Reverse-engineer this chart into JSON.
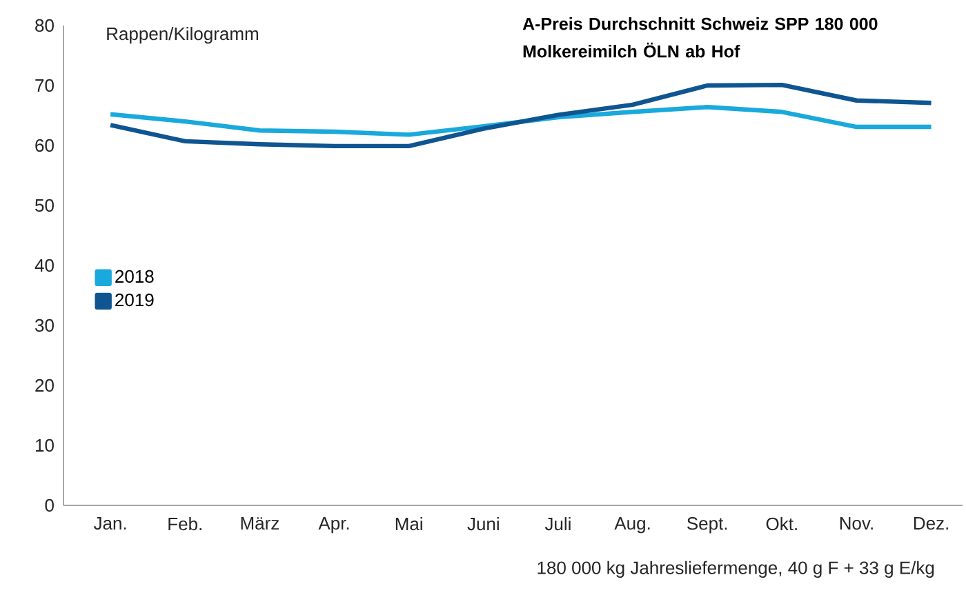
{
  "chart_data": {
    "type": "line",
    "title": "A-Preis Durchschnitt Schweiz SPP 180 000 Molkereimilch ÖLN ab Hof",
    "ylabel": "Rappen/Kilogramm",
    "annotations": [
      "180 000 kg Jahresliefermenge, 40 g F + 33 g E/kg"
    ],
    "categories": [
      "Jan.",
      "Feb.",
      "März",
      "Apr.",
      "Mai",
      "Juni",
      "Juli",
      "Aug.",
      "Sept.",
      "Okt.",
      "Nov.",
      "Dez."
    ],
    "series": [
      {
        "name": "2018",
        "color": "#1aa9dc",
        "values": [
          65.2,
          64.0,
          62.5,
          62.3,
          61.8,
          63.2,
          64.7,
          65.6,
          66.4,
          65.6,
          63.1,
          63.1
        ]
      },
      {
        "name": "2019",
        "color": "#0f5591",
        "values": [
          63.4,
          60.7,
          60.2,
          59.9,
          59.9,
          62.8,
          65.1,
          66.8,
          70.0,
          70.1,
          67.5,
          67.1
        ]
      }
    ],
    "ylim": [
      0,
      80
    ],
    "yticks": [
      0,
      10,
      20,
      30,
      40,
      50,
      60,
      70,
      80
    ],
    "legend": "left",
    "marker": "none",
    "line_style": "solid"
  }
}
